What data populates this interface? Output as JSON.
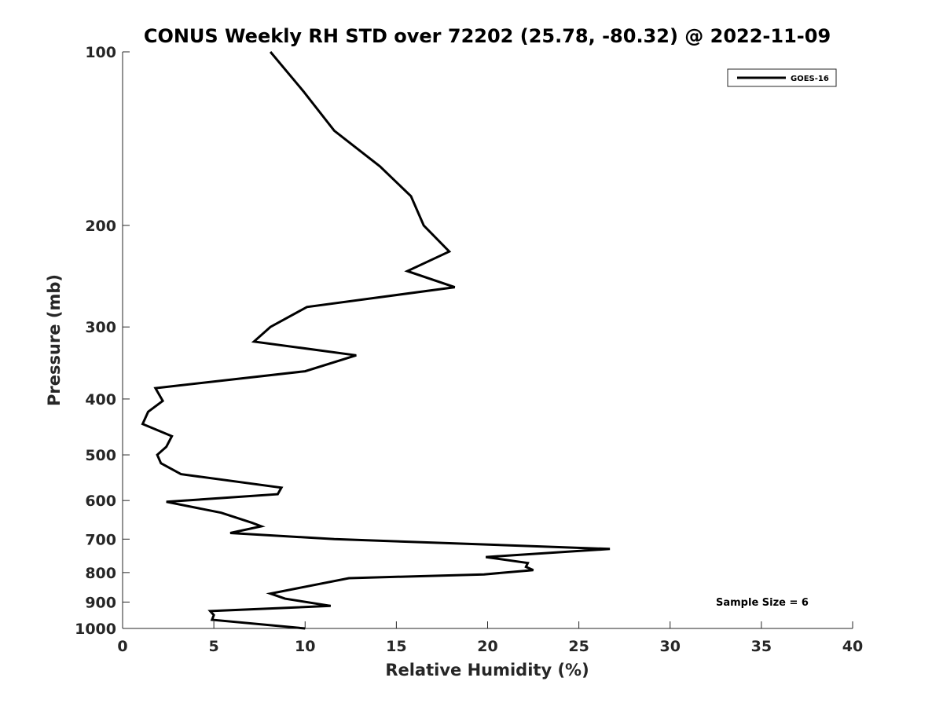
{
  "chart_data": {
    "type": "line",
    "title": "CONUS Weekly RH STD over 72202 (25.78, -80.32) @ 2022-11-09",
    "xlabel": "Relative Humidity (%)",
    "ylabel": "Pressure (mb)",
    "xlim": [
      0,
      40
    ],
    "ylim": [
      100,
      1000
    ],
    "yscale": "log",
    "y_reversed": true,
    "grid": false,
    "xticks": [
      0,
      5,
      10,
      15,
      20,
      25,
      30,
      35,
      40
    ],
    "xtick_labels": [
      "0",
      "5",
      "10",
      "15",
      "20",
      "25",
      "30",
      "35",
      "40"
    ],
    "yticks": [
      100,
      200,
      300,
      400,
      500,
      600,
      700,
      800,
      900,
      1000
    ],
    "ytick_labels": [
      "100",
      "200",
      "300",
      "400",
      "500",
      "600",
      "700",
      "800",
      "900",
      "1000"
    ],
    "legend": {
      "position": "top-right",
      "entries": [
        "GOES-16"
      ]
    },
    "annotation": "Sample Size = 6",
    "series": [
      {
        "name": "GOES-16",
        "color": "#000000",
        "x": [
          8.1,
          9.9,
          11.6,
          14.1,
          15.8,
          16.5,
          17.9,
          15.6,
          18.2,
          10.1,
          8.1,
          7.2,
          12.8,
          10.0,
          1.8,
          2.2,
          1.4,
          1.1,
          2.7,
          2.4,
          1.9,
          2.1,
          3.2,
          8.7,
          8.5,
          2.4,
          5.4,
          7.1,
          7.6,
          5.9,
          11.6,
          26.7,
          19.9,
          22.2,
          22.1,
          22.5,
          19.8,
          12.4,
          8.1,
          8.9,
          11.4,
          4.8,
          5.0,
          4.9,
          10.0
        ],
        "y": [
          100,
          117,
          137,
          158,
          178,
          200,
          222,
          240,
          256,
          277,
          300,
          318,
          336,
          358,
          383,
          403,
          421,
          442,
          464,
          484,
          500,
          517,
          540,
          570,
          585,
          603,
          630,
          656,
          665,
          683,
          700,
          728,
          752,
          770,
          782,
          792,
          806,
          818,
          870,
          888,
          914,
          933,
          948,
          966,
          1000
        ]
      }
    ]
  }
}
